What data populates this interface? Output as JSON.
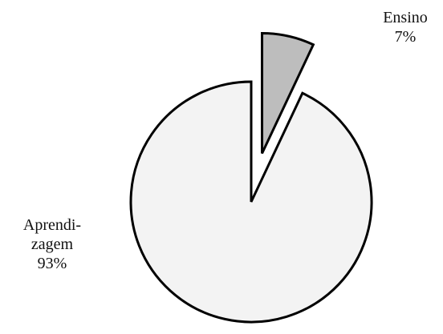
{
  "chart_data": {
    "type": "pie",
    "categories": [
      "Ensino",
      "Aprendi-\nzagem"
    ],
    "values": [
      7,
      93
    ],
    "value_labels": [
      "7%",
      "93%"
    ],
    "colors": [
      "#bdbdbd",
      "#f3f3f3"
    ],
    "explode": [
      true,
      false
    ]
  }
}
